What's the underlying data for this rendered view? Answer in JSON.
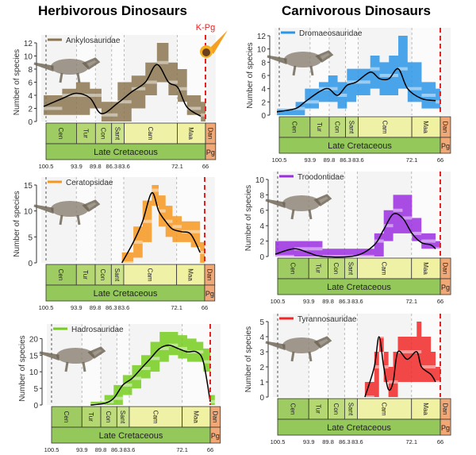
{
  "titles": {
    "left": "Herbivorous Dinosaurs",
    "right": "Carnivorous Dinosaurs"
  },
  "kpg_label": "K-Pg",
  "ylabel": "Number of species",
  "timescale": {
    "stages": [
      {
        "label": "Cen",
        "start": 100.5,
        "end": 93.9,
        "color": "#9fcc62"
      },
      {
        "label": "Tur",
        "start": 93.9,
        "end": 89.8,
        "color": "#b4d772"
      },
      {
        "label": "Con",
        "start": 89.8,
        "end": 86.3,
        "color": "#bfdc7c"
      },
      {
        "label": "Sant",
        "start": 86.3,
        "end": 83.6,
        "color": "#cbe38a"
      },
      {
        "label": "Cam",
        "start": 83.6,
        "end": 72.1,
        "color": "#eef1a6"
      },
      {
        "label": "Maa",
        "start": 72.1,
        "end": 66,
        "color": "#f1f1a2"
      },
      {
        "label": "Dan",
        "start": 66,
        "end": 63.8,
        "color": "#f0a877"
      }
    ],
    "eras": [
      {
        "label": "Late Cretaceous",
        "start": 100.5,
        "end": 66,
        "color": "#94c85a"
      },
      {
        "label": "Pg",
        "start": 66,
        "end": 63.8,
        "color": "#f0a877"
      }
    ],
    "tick_labels": [
      "100.5",
      "93.9",
      "89.8",
      "86.3",
      "83.6",
      "72.1",
      "66"
    ],
    "ticks": [
      100.5,
      93.9,
      89.8,
      86.3,
      83.6,
      72.1,
      66
    ]
  },
  "chart_data": [
    {
      "type": "line",
      "name": "Ankylosauridae",
      "color": "#8b7550",
      "ylabel": "Number of species",
      "ylim": [
        0,
        12
      ],
      "yticks": [
        0,
        2,
        4,
        6,
        8,
        10,
        12
      ],
      "xlim": [
        100.5,
        66
      ],
      "mean": [
        [
          101,
          2.3
        ],
        [
          97,
          3.5
        ],
        [
          94,
          4.3
        ],
        [
          91,
          3.6
        ],
        [
          88.5,
          1.2
        ],
        [
          85,
          2.8
        ],
        [
          82,
          4.5
        ],
        [
          79,
          6
        ],
        [
          76.5,
          8.7
        ],
        [
          74,
          6
        ],
        [
          72,
          5.2
        ],
        [
          70,
          2.2
        ],
        [
          67,
          0.8
        ]
      ],
      "max": [
        [
          101,
          4
        ],
        [
          97,
          5
        ],
        [
          94,
          6
        ],
        [
          91,
          5
        ],
        [
          88.5,
          3
        ],
        [
          85,
          6
        ],
        [
          82,
          7
        ],
        [
          79,
          9
        ],
        [
          76.5,
          12
        ],
        [
          74,
          9
        ],
        [
          72,
          8
        ],
        [
          70,
          4
        ],
        [
          67,
          3
        ]
      ],
      "min": [
        [
          101,
          1
        ],
        [
          97,
          1
        ],
        [
          94,
          1
        ],
        [
          91,
          2
        ],
        [
          88.5,
          0
        ],
        [
          85,
          0
        ],
        [
          82,
          2
        ],
        [
          79,
          4
        ],
        [
          76.5,
          6
        ],
        [
          74,
          4
        ],
        [
          72,
          3
        ],
        [
          70,
          1
        ],
        [
          67,
          0
        ]
      ]
    },
    {
      "type": "line",
      "name": "Ceratopsidae",
      "color": "#f7961e",
      "ylabel": "Number of species",
      "ylim": [
        0,
        15
      ],
      "yticks": [
        0,
        5,
        10,
        15
      ],
      "xlim": [
        100.5,
        66
      ],
      "mean": [
        [
          84,
          0
        ],
        [
          81.5,
          4
        ],
        [
          79.5,
          8
        ],
        [
          77.5,
          13.5
        ],
        [
          76,
          10
        ],
        [
          74.5,
          8
        ],
        [
          73,
          6.5
        ],
        [
          71,
          6
        ],
        [
          69,
          5.5
        ],
        [
          67,
          2
        ]
      ],
      "max": [
        [
          84,
          2
        ],
        [
          81.5,
          7
        ],
        [
          79.5,
          12
        ],
        [
          77.5,
          15
        ],
        [
          76,
          13
        ],
        [
          74.5,
          11
        ],
        [
          73,
          9
        ],
        [
          71,
          8
        ],
        [
          69,
          8
        ],
        [
          67,
          4
        ]
      ],
      "min": [
        [
          84,
          0
        ],
        [
          81.5,
          1
        ],
        [
          79.5,
          4
        ],
        [
          77.5,
          11
        ],
        [
          76,
          7
        ],
        [
          74.5,
          5
        ],
        [
          73,
          4
        ],
        [
          71,
          4
        ],
        [
          69,
          3
        ],
        [
          67,
          0
        ]
      ]
    },
    {
      "type": "line",
      "name": "Hadrosauridae",
      "color": "#76cc1e",
      "ylabel": "Number of species",
      "ylim": [
        0,
        22
      ],
      "yticks": [
        0,
        5,
        10,
        15,
        20
      ],
      "xlim": [
        100.5,
        66
      ],
      "mean": [
        [
          92,
          0
        ],
        [
          89,
          0.5
        ],
        [
          87,
          2
        ],
        [
          85,
          6
        ],
        [
          83,
          8
        ],
        [
          81,
          11
        ],
        [
          79,
          14
        ],
        [
          77,
          17
        ],
        [
          75,
          18
        ],
        [
          73,
          17
        ],
        [
          71,
          16
        ],
        [
          69,
          16
        ],
        [
          67.5,
          13
        ],
        [
          66,
          1
        ]
      ],
      "max": [
        [
          92,
          1
        ],
        [
          89,
          3
        ],
        [
          87,
          6
        ],
        [
          85,
          9
        ],
        [
          83,
          12
        ],
        [
          81,
          15
        ],
        [
          79,
          19
        ],
        [
          77,
          22
        ],
        [
          75,
          22
        ],
        [
          73,
          21
        ],
        [
          71,
          20
        ],
        [
          69,
          19
        ],
        [
          67.5,
          17
        ],
        [
          66,
          3
        ]
      ],
      "min": [
        [
          92,
          0
        ],
        [
          89,
          0
        ],
        [
          87,
          0
        ],
        [
          85,
          3
        ],
        [
          83,
          5
        ],
        [
          81,
          8
        ],
        [
          79,
          10
        ],
        [
          77,
          13
        ],
        [
          75,
          15
        ],
        [
          73,
          14
        ],
        [
          71,
          13
        ],
        [
          69,
          13
        ],
        [
          67.5,
          10
        ],
        [
          66,
          0
        ]
      ]
    },
    {
      "type": "line",
      "name": "Dromaeosauridae",
      "color": "#2b95e8",
      "ylabel": "Number of species",
      "ylim": [
        0,
        12
      ],
      "yticks": [
        0,
        2,
        4,
        6,
        8,
        10,
        12
      ],
      "xlim": [
        100.5,
        66
      ],
      "mean": [
        [
          101,
          0.5
        ],
        [
          97,
          1
        ],
        [
          95,
          2
        ],
        [
          92,
          3.5
        ],
        [
          90,
          4
        ],
        [
          88,
          3
        ],
        [
          86,
          4.5
        ],
        [
          84,
          5
        ],
        [
          81,
          6.5
        ],
        [
          79,
          5.5
        ],
        [
          77,
          5.5
        ],
        [
          75,
          7
        ],
        [
          73,
          4
        ],
        [
          70,
          2.5
        ],
        [
          67,
          2.2
        ]
      ],
      "max": [
        [
          101,
          1
        ],
        [
          97,
          2
        ],
        [
          95,
          4
        ],
        [
          92,
          5
        ],
        [
          90,
          6
        ],
        [
          88,
          5
        ],
        [
          86,
          7
        ],
        [
          84,
          7
        ],
        [
          81,
          9
        ],
        [
          79,
          8
        ],
        [
          77,
          9
        ],
        [
          75,
          12
        ],
        [
          73,
          8
        ],
        [
          70,
          5
        ],
        [
          67,
          4
        ]
      ],
      "min": [
        [
          101,
          0
        ],
        [
          97,
          0
        ],
        [
          95,
          1
        ],
        [
          92,
          2
        ],
        [
          90,
          2
        ],
        [
          88,
          1
        ],
        [
          86,
          2
        ],
        [
          84,
          3
        ],
        [
          81,
          4
        ],
        [
          79,
          3
        ],
        [
          77,
          3
        ],
        [
          75,
          4
        ],
        [
          73,
          2
        ],
        [
          70,
          1
        ],
        [
          67,
          1
        ]
      ]
    },
    {
      "type": "line",
      "name": "Troodontidae",
      "color": "#9a2ee0",
      "ylabel": "Number of species",
      "ylim": [
        0,
        10
      ],
      "yticks": [
        0,
        2,
        4,
        6,
        8,
        10
      ],
      "xlim": [
        100.5,
        66
      ],
      "mean": [
        [
          101,
          0.3
        ],
        [
          97,
          1
        ],
        [
          94,
          0.5
        ],
        [
          91,
          0
        ],
        [
          84,
          0.1
        ],
        [
          80,
          1.5
        ],
        [
          78,
          3.5
        ],
        [
          76,
          5.5
        ],
        [
          74,
          5
        ],
        [
          72,
          3
        ],
        [
          70,
          1.8
        ],
        [
          68,
          1.5
        ],
        [
          67,
          1
        ]
      ],
      "max": [
        [
          101,
          2
        ],
        [
          97,
          2
        ],
        [
          94,
          2
        ],
        [
          91,
          1
        ],
        [
          84,
          1
        ],
        [
          80,
          3
        ],
        [
          78,
          6
        ],
        [
          76,
          8
        ],
        [
          74,
          8
        ],
        [
          72,
          5
        ],
        [
          70,
          3
        ],
        [
          68,
          3
        ],
        [
          67,
          2
        ]
      ],
      "min": [
        [
          101,
          0
        ],
        [
          97,
          0
        ],
        [
          94,
          0
        ],
        [
          91,
          0
        ],
        [
          84,
          0
        ],
        [
          80,
          0
        ],
        [
          78,
          2
        ],
        [
          76,
          3
        ],
        [
          74,
          3
        ],
        [
          72,
          2
        ],
        [
          70,
          1
        ],
        [
          68,
          1
        ],
        [
          67,
          1
        ]
      ]
    },
    {
      "type": "line",
      "name": "Tyrannosauridae",
      "color": "#f02828",
      "ylabel": "Number of species",
      "ylim": [
        0,
        5
      ],
      "yticks": [
        0,
        1,
        2,
        3,
        4,
        5
      ],
      "xlim": [
        100.5,
        66
      ],
      "mean": [
        [
          82,
          0
        ],
        [
          80,
          2
        ],
        [
          79,
          4
        ],
        [
          78,
          2
        ],
        [
          77,
          0.5
        ],
        [
          76,
          1
        ],
        [
          75,
          3
        ],
        [
          73,
          2.5
        ],
        [
          71,
          3
        ],
        [
          70,
          2
        ],
        [
          68,
          1.5
        ],
        [
          67,
          1
        ]
      ],
      "max": [
        [
          82,
          1
        ],
        [
          80,
          3
        ],
        [
          79,
          4
        ],
        [
          78,
          3
        ],
        [
          77,
          2
        ],
        [
          76,
          3
        ],
        [
          75,
          4
        ],
        [
          73,
          4
        ],
        [
          71,
          5
        ],
        [
          70,
          4
        ],
        [
          68,
          3
        ],
        [
          67,
          2
        ]
      ],
      "min": [
        [
          82,
          0
        ],
        [
          80,
          0
        ],
        [
          79,
          3
        ],
        [
          78,
          1
        ],
        [
          77,
          0
        ],
        [
          76,
          0
        ],
        [
          75,
          1
        ],
        [
          73,
          1
        ],
        [
          71,
          1
        ],
        [
          70,
          1
        ],
        [
          68,
          1
        ],
        [
          67,
          1
        ]
      ]
    }
  ]
}
